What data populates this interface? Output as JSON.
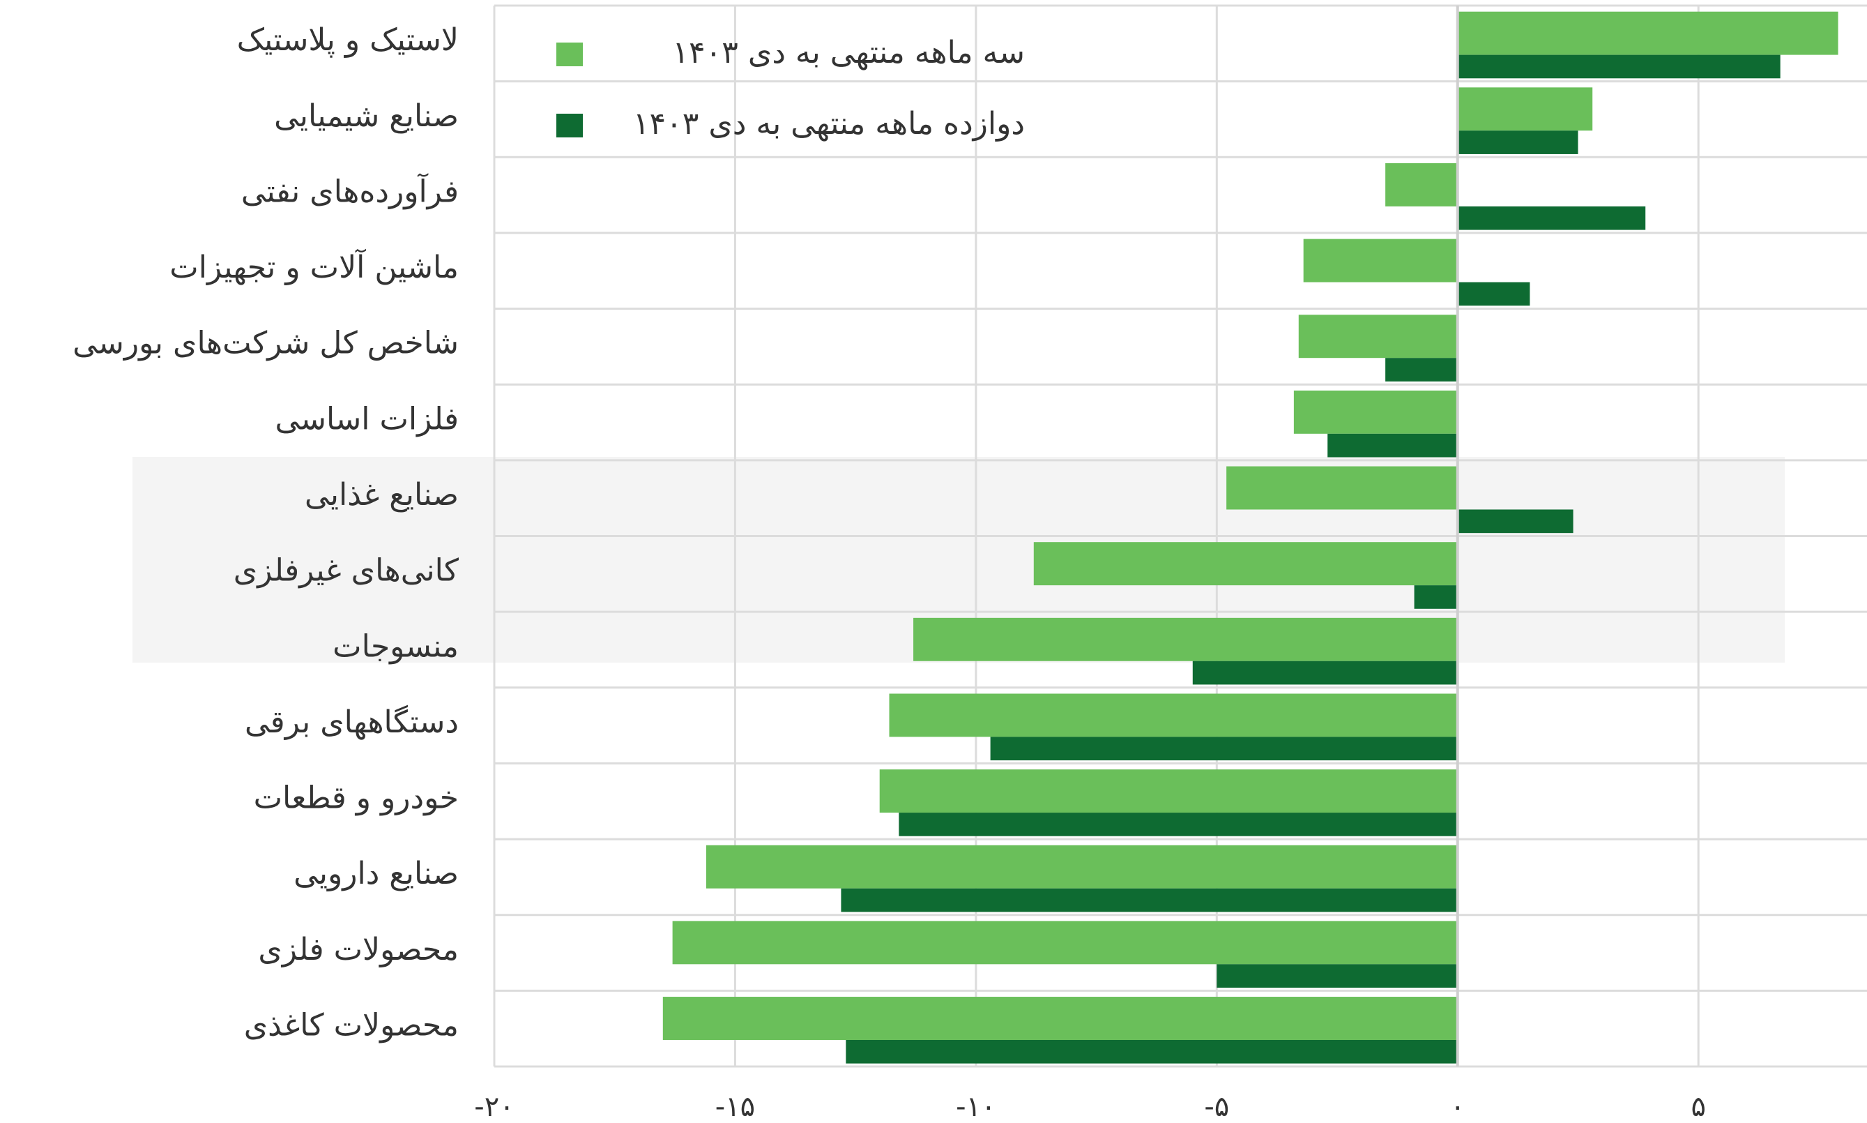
{
  "chart_data": {
    "type": "bar",
    "orientation": "horizontal",
    "categories": [
      "لاستیک و پلاستیک",
      "صنایع شیمیایی",
      "فرآورده‌های نفتی",
      "ماشین آلات و تجهیزات",
      "شاخص کل شرکت‌های بورسی",
      "فلزات اساسی",
      "صنایع غذایی",
      "کانی‌های غیرفلزی",
      "منسوجات",
      "دستگاههای برقی",
      "خودرو و قطعات",
      "صنایع دارویی",
      "محصولات فلزی",
      "محصولات کاغذی"
    ],
    "series": [
      {
        "name": "سه ماهه منتهی به دی ۱۴۰۳",
        "color": "#6abf5a",
        "values": [
          7.9,
          2.8,
          -1.5,
          -3.2,
          -3.3,
          -3.4,
          -4.8,
          -8.8,
          -11.3,
          -11.8,
          -12.0,
          -15.6,
          -16.3,
          -16.5
        ]
      },
      {
        "name": "دوازده ماهه منتهی به دی ۱۴۰۳",
        "color": "#0e6b32",
        "values": [
          6.7,
          2.5,
          3.9,
          1.5,
          -1.5,
          -2.7,
          2.4,
          -0.9,
          -5.5,
          -9.7,
          -11.6,
          -12.8,
          -5.0,
          -12.7
        ]
      }
    ],
    "xlim": [
      -20,
      8.5
    ],
    "xticks": [
      {
        "value": -20,
        "label": "-۲۰"
      },
      {
        "value": -15,
        "label": "-۱۵"
      },
      {
        "value": -10,
        "label": "-۱۰"
      },
      {
        "value": -5,
        "label": "-۵"
      },
      {
        "value": 0,
        "label": "۰"
      },
      {
        "value": 5,
        "label": "۵"
      }
    ],
    "grid": true,
    "legend": "top-left"
  }
}
